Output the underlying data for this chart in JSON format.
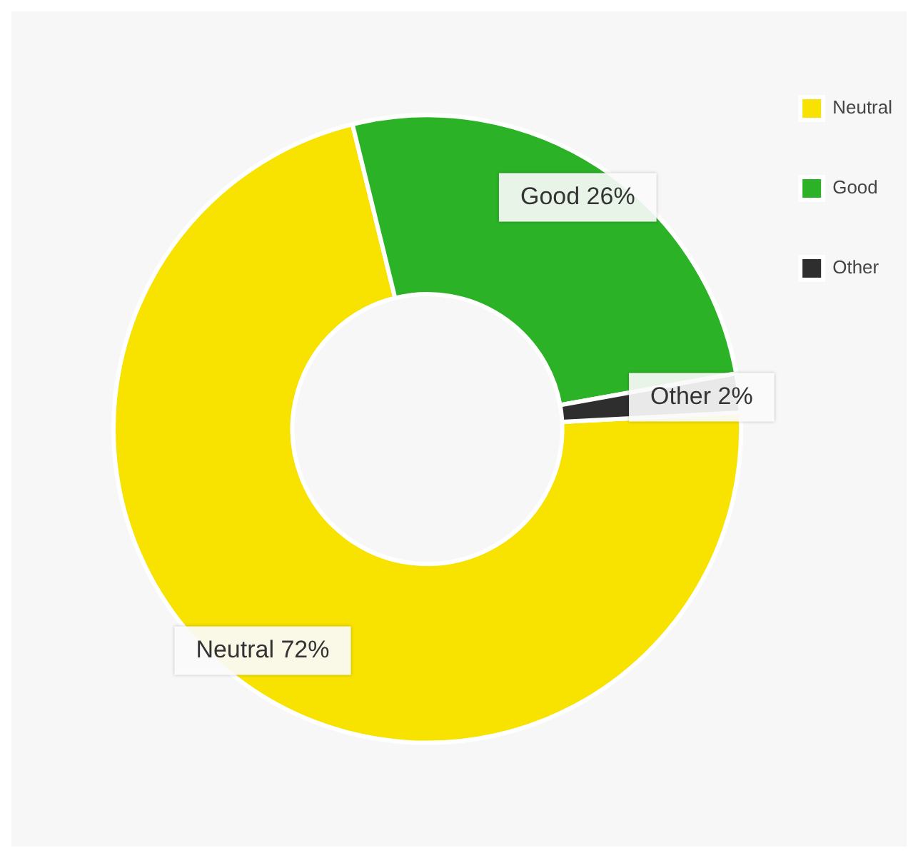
{
  "chart_data": {
    "type": "donut",
    "categories": [
      "Neutral",
      "Good",
      "Other"
    ],
    "values": [
      72,
      26,
      2
    ],
    "colors": [
      "#f7e200",
      "#2bb226",
      "#2e2e2e"
    ],
    "value_labels": [
      "Neutral 72%",
      "Good 26%",
      "Other 2%"
    ],
    "legend": "top right"
  }
}
